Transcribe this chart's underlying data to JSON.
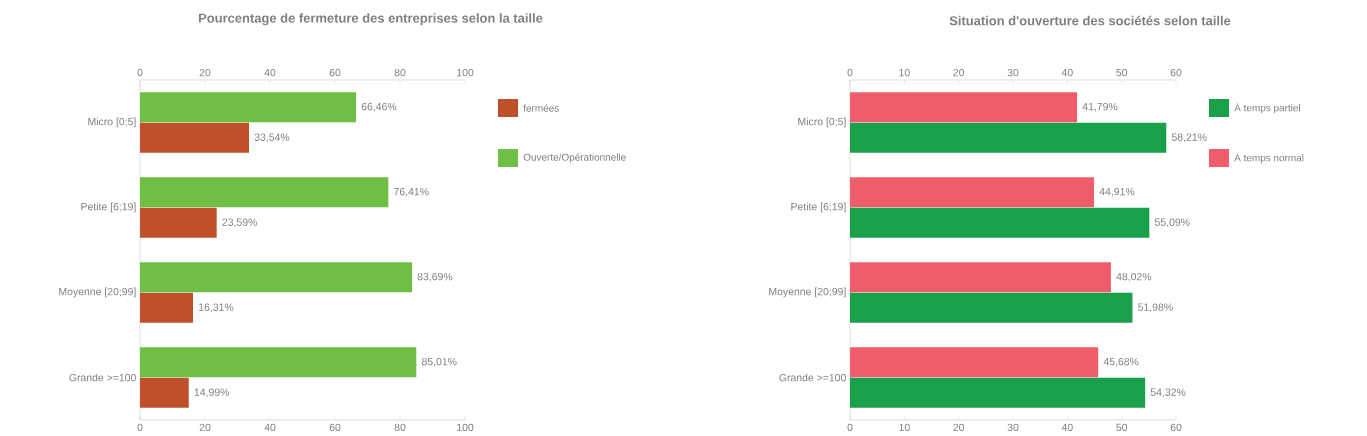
{
  "chart_data": [
    {
      "type": "bar",
      "orientation": "horizontal",
      "title": "Pourcentage de fermeture des  entreprises selon la taille",
      "categories": [
        "Micro [0;5]",
        "Petite [6;19]",
        "Moyenne [20;99]",
        "Grande >=100"
      ],
      "series": [
        {
          "name": "fermées",
          "color": "#c0502a",
          "values": [
            33.54,
            23.59,
            16.31,
            14.99
          ],
          "value_labels": [
            "33,54%",
            "23,59%",
            "16,31%",
            "14,99%"
          ]
        },
        {
          "name": "Ouverte/Opérationnelle",
          "color": "#6fbf44",
          "values": [
            66.46,
            76.41,
            83.69,
            85.01
          ],
          "value_labels": [
            "66,46%",
            "76,41%",
            "83,69%",
            "85,01%"
          ]
        }
      ],
      "xlim": [
        0,
        100
      ],
      "xticks": [
        0,
        20,
        40,
        60,
        80,
        100
      ],
      "x2lim": [
        0,
        100
      ],
      "x2ticks": [
        0,
        20,
        40,
        60,
        80,
        100
      ],
      "legend": "top right"
    },
    {
      "type": "bar",
      "orientation": "horizontal",
      "title": "Situation d'ouverture des sociétés selon taille",
      "categories": [
        "Micro [0;5]",
        "Petite [6;19]",
        "Moyenne [20;99]",
        "Grande >=100"
      ],
      "series": [
        {
          "name": "À temps partiel",
          "color": "#1a9f4a",
          "values": [
            58.21,
            55.09,
            51.98,
            54.32
          ],
          "value_labels": [
            "58,21%",
            "55,09%",
            "51,98%",
            "54,32%"
          ]
        },
        {
          "name": "À temps normal",
          "color": "#f05d6a",
          "values": [
            41.79,
            44.91,
            48.02,
            45.68
          ],
          "value_labels": [
            "41,79%",
            "44,91%",
            "48,02%",
            "45,68%"
          ]
        }
      ],
      "xlim": [
        0,
        60
      ],
      "xticks": [
        0,
        10,
        20,
        30,
        40,
        50,
        60
      ],
      "x2lim": [
        0,
        60
      ],
      "x2ticks": [
        0,
        10,
        20,
        30,
        40,
        50,
        60
      ],
      "legend": "top right"
    }
  ]
}
